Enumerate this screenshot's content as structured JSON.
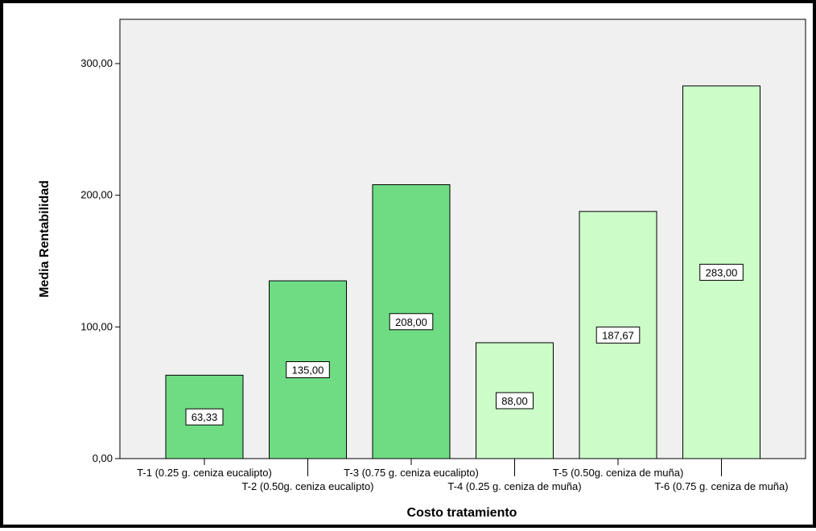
{
  "chart_data": {
    "type": "bar",
    "xlabel": "Costo tratamiento",
    "ylabel": "Media Rentabilidad",
    "ylim": [
      0,
      330
    ],
    "yticks": [
      0,
      100,
      200,
      300
    ],
    "ytick_labels": [
      "0,00",
      "100,00",
      "200,00",
      "300,00"
    ],
    "categories": [
      "T-1 (0.25 g. ceniza eucalipto)",
      "T-2 (0.50g. ceniza eucalipto)",
      "T-3 (0.75 g. ceniza eucalipto)",
      "T-4 (0.25 g. ceniza de muña)",
      "T-5 (0.50g. ceniza de muña)",
      "T-6 (0.75 g. ceniza de muña)"
    ],
    "values": [
      63.33,
      135.0,
      208.0,
      88.0,
      187.67,
      283.0
    ],
    "value_labels": [
      "63,33",
      "135,00",
      "208,00",
      "88,00",
      "187,67",
      "283,00"
    ],
    "bar_colors": [
      "#6fdc84",
      "#6fdc84",
      "#6fdc84",
      "#ccfdc8",
      "#ccfdc8",
      "#ccfdc8"
    ],
    "plot_background": "#f0f0f0",
    "grid": false
  }
}
